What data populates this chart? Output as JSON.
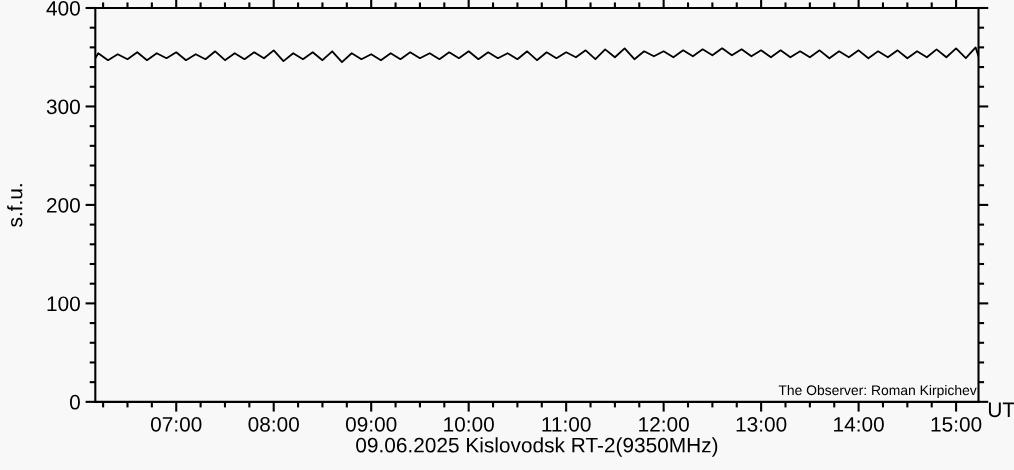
{
  "chart_data": {
    "type": "line",
    "xlabel": "09.06.2025 Kislovodsk RT-2(9350MHz)",
    "ylabel": "s.f.u.",
    "annotations": [
      "The Observer: Roman Kirpichev",
      "UT"
    ],
    "xlim": [
      6.17,
      15.23
    ],
    "ylim": [
      0,
      400
    ],
    "yticks": [
      0,
      100,
      200,
      300,
      400
    ],
    "xticks": [
      {
        "value": 7,
        "label": "07:00"
      },
      {
        "value": 8,
        "label": "08:00"
      },
      {
        "value": 9,
        "label": "09:00"
      },
      {
        "value": 10,
        "label": "10:00"
      },
      {
        "value": 11,
        "label": "11:00"
      },
      {
        "value": 12,
        "label": "12:00"
      },
      {
        "value": 13,
        "label": "13:00"
      },
      {
        "value": 14,
        "label": "14:00"
      },
      {
        "value": 15,
        "label": "15:00"
      }
    ],
    "grid": false,
    "legend": false,
    "marker": "none",
    "line_style": "solid",
    "x": [
      6.17,
      6.2,
      6.3,
      6.4,
      6.5,
      6.6,
      6.7,
      6.8,
      6.9,
      7.0,
      7.1,
      7.2,
      7.3,
      7.4,
      7.5,
      7.6,
      7.7,
      7.8,
      7.9,
      8.0,
      8.1,
      8.2,
      8.3,
      8.4,
      8.5,
      8.6,
      8.7,
      8.8,
      8.9,
      9.0,
      9.1,
      9.2,
      9.3,
      9.4,
      9.5,
      9.6,
      9.7,
      9.8,
      9.9,
      10.0,
      10.1,
      10.2,
      10.3,
      10.4,
      10.5,
      10.6,
      10.7,
      10.8,
      10.9,
      11.0,
      11.1,
      11.2,
      11.3,
      11.4,
      11.5,
      11.6,
      11.7,
      11.8,
      11.9,
      12.0,
      12.1,
      12.2,
      12.3,
      12.4,
      12.5,
      12.6,
      12.7,
      12.8,
      12.9,
      13.0,
      13.1,
      13.2,
      13.3,
      13.4,
      13.5,
      13.6,
      13.7,
      13.8,
      13.9,
      14.0,
      14.1,
      14.2,
      14.3,
      14.4,
      14.5,
      14.6,
      14.7,
      14.8,
      14.9,
      15.0,
      15.1,
      15.2,
      15.23
    ],
    "series": [
      {
        "color": "#000000",
        "values": [
          349,
          354,
          347,
          353,
          348,
          355,
          347,
          354,
          349,
          355,
          347,
          353,
          348,
          356,
          347,
          354,
          348,
          355,
          349,
          357,
          346,
          354,
          348,
          355,
          347,
          356,
          345,
          354,
          348,
          353,
          347,
          354,
          348,
          355,
          349,
          354,
          348,
          355,
          349,
          356,
          348,
          355,
          349,
          354,
          348,
          356,
          347,
          355,
          349,
          355,
          350,
          357,
          348,
          358,
          350,
          359,
          348,
          356,
          351,
          356,
          350,
          357,
          351,
          358,
          352,
          359,
          352,
          358,
          351,
          357,
          350,
          357,
          350,
          356,
          350,
          357,
          349,
          356,
          350,
          357,
          349,
          356,
          350,
          357,
          349,
          356,
          350,
          358,
          350,
          359,
          349,
          360,
          351
        ]
      }
    ]
  }
}
